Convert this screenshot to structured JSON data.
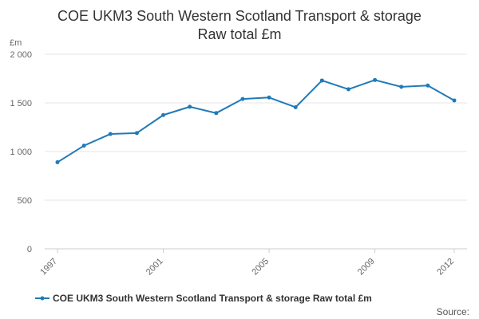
{
  "chart_data": {
    "type": "line",
    "title_line1": "COE UKM3 South Western Scotland Transport & storage",
    "title_line2": "Raw total £m",
    "y_unit": "£m",
    "x": [
      1997,
      1998,
      1999,
      2000,
      2001,
      2002,
      2003,
      2004,
      2005,
      2006,
      2007,
      2008,
      2009,
      2010,
      2011,
      2012
    ],
    "x_tick_labels": [
      "1997",
      "2001",
      "2005",
      "2009",
      "2012"
    ],
    "y_ticks": [
      0,
      500,
      1000,
      1500,
      2000
    ],
    "y_tick_labels": [
      "0",
      "500",
      "1 000",
      "1 500",
      "2 000"
    ],
    "ylim": [
      0,
      2000
    ],
    "grid": true,
    "legend_position": "bottom",
    "series": [
      {
        "name": "COE UKM3 South Western Scotland Transport & storage Raw total £m",
        "color": "#1f7ab8",
        "values": [
          890,
          1060,
          1180,
          1190,
          1375,
          1460,
          1395,
          1540,
          1555,
          1455,
          1730,
          1640,
          1735,
          1665,
          1678,
          1525
        ]
      }
    ]
  },
  "source_label": "Source:"
}
